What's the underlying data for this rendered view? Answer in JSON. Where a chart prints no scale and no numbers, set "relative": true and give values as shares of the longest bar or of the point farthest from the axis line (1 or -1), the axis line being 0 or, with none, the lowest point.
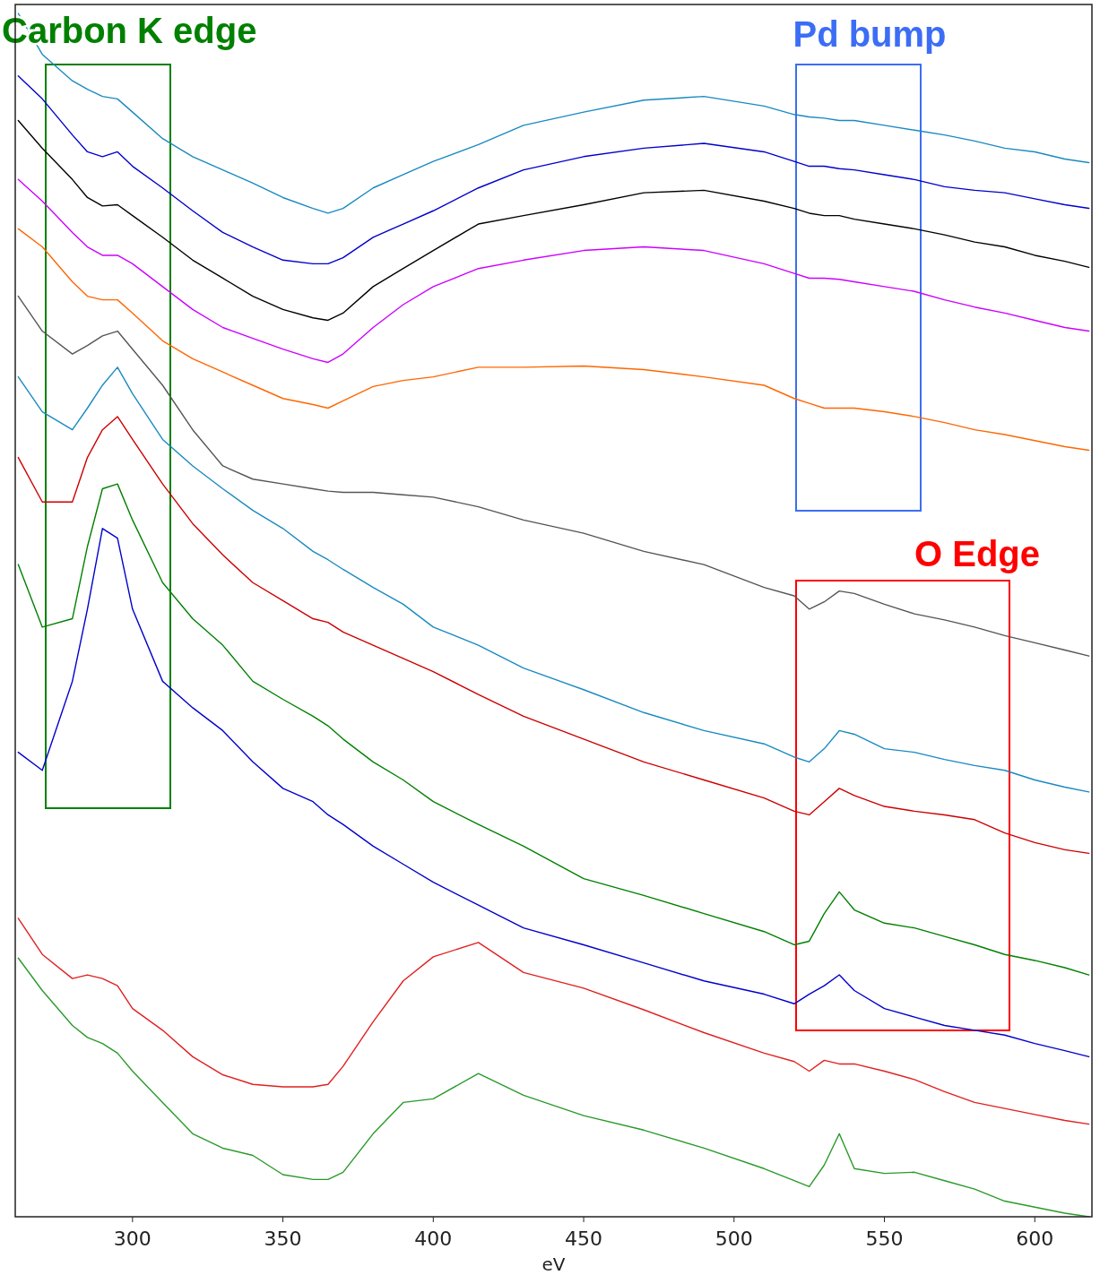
{
  "chart_data": {
    "type": "line",
    "xlabel": "eV",
    "relative": true,
    "xlim": [
      261,
      619
    ],
    "xticks": [
      300,
      350,
      400,
      450,
      500,
      550,
      600
    ],
    "x": [
      262,
      270,
      280,
      285,
      290,
      295,
      300,
      310,
      320,
      330,
      340,
      350,
      360,
      365,
      370,
      380,
      390,
      400,
      415,
      430,
      450,
      470,
      490,
      510,
      520,
      525,
      530,
      535,
      540,
      550,
      560,
      570,
      580,
      590,
      600,
      610,
      618
    ],
    "series": [
      {
        "color": "#1a8ac0",
        "values": [
          1.0,
          0.966,
          0.944,
          0.937,
          0.931,
          0.929,
          0.918,
          0.896,
          0.881,
          0.87,
          0.859,
          0.847,
          0.838,
          0.834,
          0.838,
          0.855,
          0.866,
          0.877,
          0.891,
          0.907,
          0.918,
          0.928,
          0.931,
          0.923,
          0.916,
          0.914,
          0.913,
          0.911,
          0.911,
          0.907,
          0.903,
          0.899,
          0.894,
          0.888,
          0.885,
          0.879,
          0.876
        ]
      },
      {
        "color": "#0000cc",
        "values": [
          0.948,
          0.929,
          0.899,
          0.885,
          0.881,
          0.885,
          0.873,
          0.855,
          0.836,
          0.818,
          0.806,
          0.795,
          0.792,
          0.792,
          0.797,
          0.814,
          0.825,
          0.836,
          0.855,
          0.87,
          0.881,
          0.888,
          0.892,
          0.885,
          0.877,
          0.873,
          0.873,
          0.871,
          0.87,
          0.866,
          0.862,
          0.856,
          0.853,
          0.851,
          0.846,
          0.841,
          0.838
        ]
      },
      {
        "color": "#000000",
        "values": [
          0.911,
          0.888,
          0.862,
          0.847,
          0.84,
          0.841,
          0.832,
          0.814,
          0.795,
          0.78,
          0.765,
          0.754,
          0.747,
          0.745,
          0.751,
          0.773,
          0.788,
          0.803,
          0.825,
          0.832,
          0.841,
          0.851,
          0.853,
          0.844,
          0.838,
          0.834,
          0.832,
          0.832,
          0.829,
          0.825,
          0.821,
          0.816,
          0.81,
          0.806,
          0.799,
          0.794,
          0.789
        ]
      },
      {
        "color": "#cc00ff",
        "values": [
          0.862,
          0.844,
          0.818,
          0.806,
          0.799,
          0.799,
          0.792,
          0.773,
          0.754,
          0.739,
          0.73,
          0.721,
          0.713,
          0.71,
          0.717,
          0.739,
          0.758,
          0.773,
          0.788,
          0.795,
          0.803,
          0.806,
          0.803,
          0.792,
          0.784,
          0.78,
          0.78,
          0.779,
          0.777,
          0.773,
          0.769,
          0.762,
          0.756,
          0.751,
          0.745,
          0.739,
          0.736
        ]
      },
      {
        "color": "#ff6600",
        "values": [
          0.821,
          0.806,
          0.777,
          0.765,
          0.762,
          0.762,
          0.751,
          0.728,
          0.713,
          0.702,
          0.691,
          0.68,
          0.675,
          0.672,
          0.678,
          0.69,
          0.695,
          0.698,
          0.706,
          0.706,
          0.707,
          0.704,
          0.698,
          0.691,
          0.68,
          0.676,
          0.672,
          0.672,
          0.672,
          0.669,
          0.665,
          0.66,
          0.654,
          0.65,
          0.645,
          0.64,
          0.637
        ]
      },
      {
        "color": "#555555",
        "values": [
          0.765,
          0.736,
          0.717,
          0.724,
          0.732,
          0.736,
          0.721,
          0.691,
          0.654,
          0.624,
          0.613,
          0.609,
          0.605,
          0.603,
          0.602,
          0.602,
          0.6,
          0.598,
          0.59,
          0.579,
          0.568,
          0.553,
          0.542,
          0.523,
          0.516,
          0.505,
          0.511,
          0.52,
          0.518,
          0.509,
          0.501,
          0.496,
          0.49,
          0.483,
          0.477,
          0.471,
          0.466
        ]
      },
      {
        "color": "#1a8ac0",
        "values": [
          0.698,
          0.669,
          0.654,
          0.672,
          0.691,
          0.706,
          0.684,
          0.646,
          0.624,
          0.605,
          0.587,
          0.572,
          0.553,
          0.546,
          0.538,
          0.523,
          0.509,
          0.49,
          0.475,
          0.456,
          0.438,
          0.419,
          0.404,
          0.393,
          0.382,
          0.378,
          0.389,
          0.404,
          0.401,
          0.389,
          0.386,
          0.38,
          0.375,
          0.371,
          0.363,
          0.357,
          0.353
        ]
      },
      {
        "color": "#cc0000",
        "values": [
          0.631,
          0.594,
          0.594,
          0.631,
          0.654,
          0.665,
          0.646,
          0.609,
          0.576,
          0.55,
          0.527,
          0.512,
          0.497,
          0.494,
          0.486,
          0.475,
          0.464,
          0.453,
          0.434,
          0.416,
          0.397,
          0.378,
          0.363,
          0.348,
          0.337,
          0.334,
          0.345,
          0.356,
          0.35,
          0.341,
          0.337,
          0.334,
          0.33,
          0.319,
          0.311,
          0.305,
          0.302
        ]
      },
      {
        "color": "#008000",
        "values": [
          0.542,
          0.49,
          0.497,
          0.557,
          0.605,
          0.609,
          0.579,
          0.527,
          0.497,
          0.475,
          0.445,
          0.43,
          0.416,
          0.408,
          0.397,
          0.378,
          0.363,
          0.345,
          0.326,
          0.308,
          0.281,
          0.267,
          0.252,
          0.237,
          0.226,
          0.229,
          0.252,
          0.27,
          0.255,
          0.244,
          0.24,
          0.233,
          0.226,
          0.218,
          0.213,
          0.207,
          0.201
        ]
      },
      {
        "color": "#0000cc",
        "values": [
          0.386,
          0.371,
          0.445,
          0.505,
          0.572,
          0.564,
          0.505,
          0.445,
          0.423,
          0.404,
          0.378,
          0.356,
          0.345,
          0.334,
          0.326,
          0.308,
          0.293,
          0.278,
          0.259,
          0.24,
          0.226,
          0.211,
          0.196,
          0.185,
          0.177,
          0.185,
          0.192,
          0.201,
          0.188,
          0.173,
          0.166,
          0.159,
          0.155,
          0.151,
          0.144,
          0.138,
          0.133
        ]
      },
      {
        "color": "#e02020",
        "values": [
          0.248,
          0.218,
          0.198,
          0.201,
          0.198,
          0.192,
          0.173,
          0.155,
          0.133,
          0.118,
          0.11,
          0.108,
          0.108,
          0.11,
          0.125,
          0.162,
          0.196,
          0.216,
          0.228,
          0.203,
          0.19,
          0.172,
          0.153,
          0.136,
          0.129,
          0.121,
          0.13,
          0.127,
          0.127,
          0.121,
          0.114,
          0.104,
          0.095,
          0.09,
          0.085,
          0.08,
          0.077
        ]
      },
      {
        "color": "#2a9a2a",
        "values": [
          0.215,
          0.188,
          0.159,
          0.149,
          0.144,
          0.136,
          0.121,
          0.095,
          0.069,
          0.057,
          0.051,
          0.035,
          0.031,
          0.031,
          0.037,
          0.069,
          0.095,
          0.098,
          0.119,
          0.101,
          0.084,
          0.072,
          0.057,
          0.04,
          0.03,
          0.025,
          0.043,
          0.069,
          0.04,
          0.036,
          0.037,
          0.03,
          0.023,
          0.013,
          0.008,
          0.003,
          0
        ]
      }
    ],
    "annotations": [
      "Carbon K edge",
      "Pd bump",
      "O Edge"
    ]
  }
}
